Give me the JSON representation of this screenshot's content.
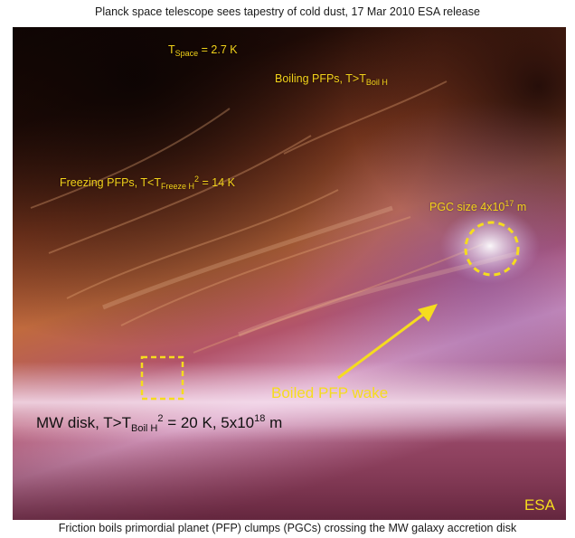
{
  "caption_top": "Planck space telescope sees tapestry of cold dust, 17 Mar 2010 ESA release",
  "caption_bottom": "Friction boils primordial planet (PFP) clumps (PGCs) crossing the MW galaxy accretion disk",
  "labels": {
    "t_space_pre": "T",
    "t_space_sub": "Space",
    "t_space_post": " = 2.7 K",
    "boiling_pre": "Boiling PFPs, T>T",
    "boiling_sub": "Boil H",
    "freezing_pre": "Freezing PFPs, T<T",
    "freezing_sub": "Freeze H",
    "freezing_sup": "2",
    "freezing_post": " = 14 K",
    "pgc_pre": "PGC size 4x10",
    "pgc_sup": "17",
    "pgc_post": " m",
    "wake": "Boiled PFP wake",
    "mw_pre": "MW disk, T>T",
    "mw_sub": "Boil H",
    "mw_sup": "2",
    "mw_mid": " = 20 K, 5x10",
    "mw_sup2": "18",
    "mw_post": " m",
    "credit": "ESA"
  },
  "colors": {
    "annotation_yellow": "#f5dc1e",
    "dust_dark": "#1a0a06",
    "dust_orange": "#c0663a",
    "disk_pink": "#e8b8d8"
  }
}
